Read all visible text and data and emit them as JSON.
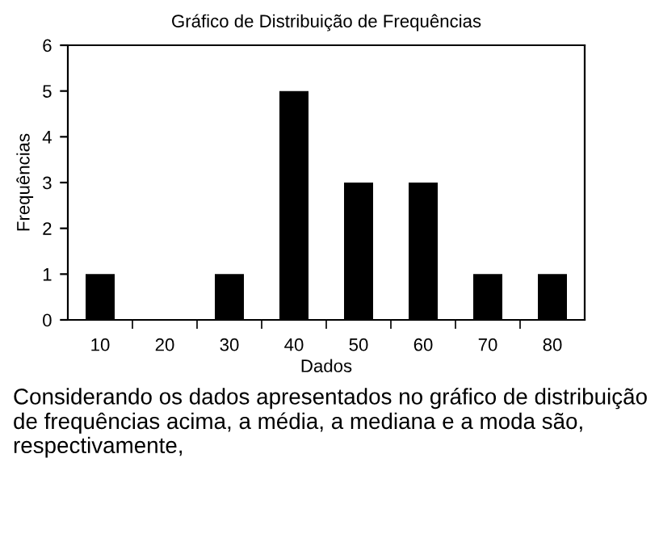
{
  "chart_data": {
    "type": "bar",
    "title": "Gráfico de Distribuição de Frequências",
    "xlabel": "Dados",
    "ylabel": "Frequências",
    "categories": [
      "10",
      "20",
      "30",
      "40",
      "50",
      "60",
      "70",
      "80"
    ],
    "values": [
      1,
      0,
      1,
      5,
      3,
      3,
      1,
      1
    ],
    "color": "#000000",
    "ylim": [
      0,
      6
    ],
    "yticks": [
      0,
      1,
      2,
      3,
      4,
      5,
      6
    ],
    "grid": false,
    "annotations": [
      "Considerando os dados apresentados no gráfico de distribuição de frequências acima, a média, a mediana e a moda são, respectivamente,"
    ]
  }
}
